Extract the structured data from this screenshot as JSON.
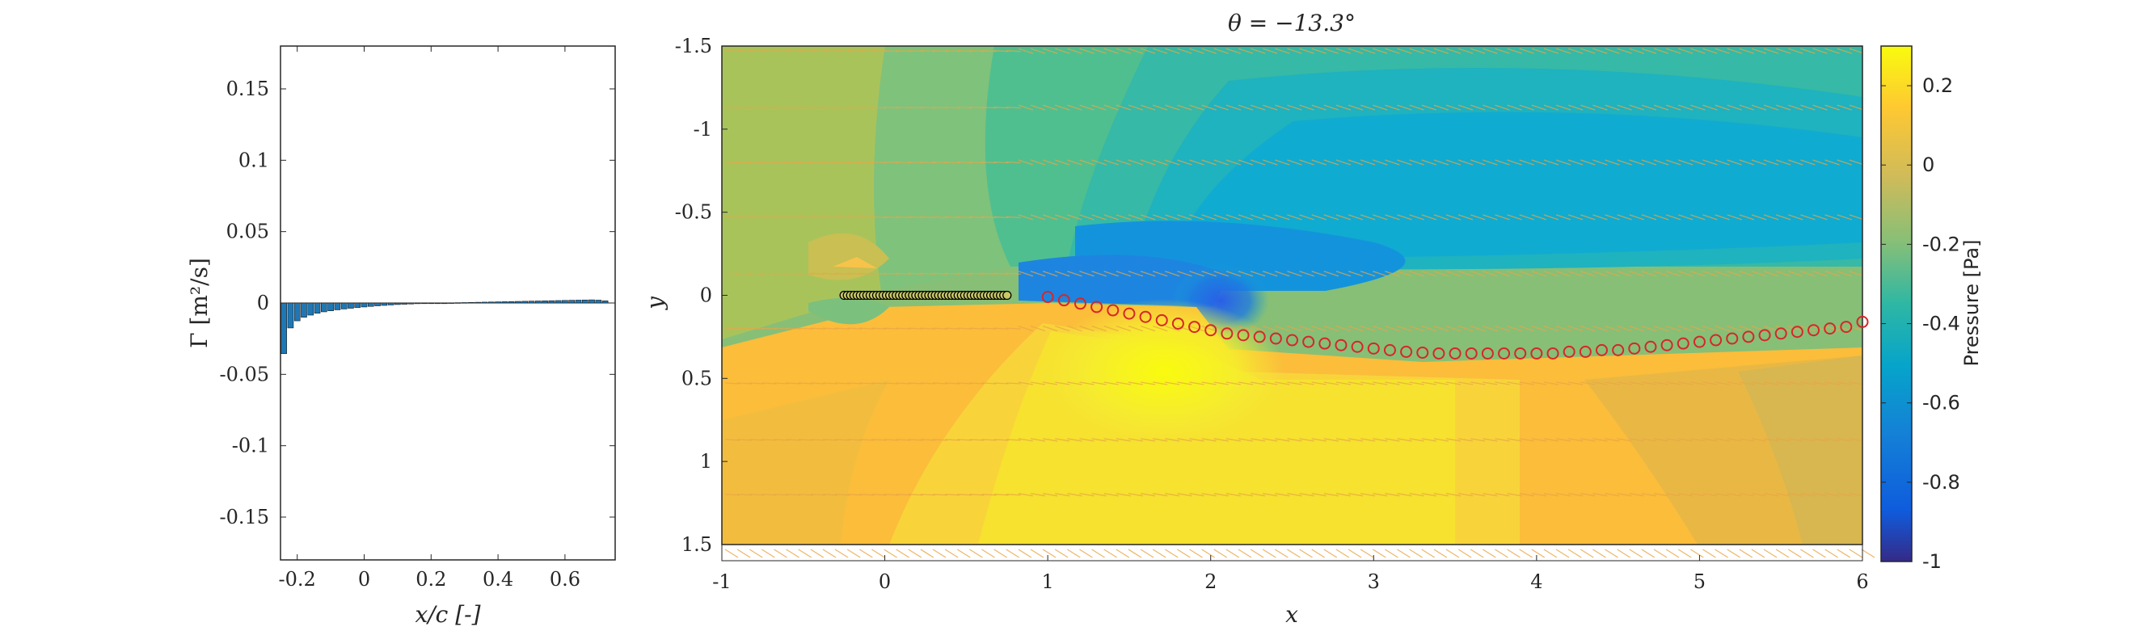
{
  "chart_data": [
    {
      "type": "bar",
      "xlabel": "x/c [-]",
      "ylabel": "Γ [m²/s]",
      "xlim": [
        -0.25,
        0.75
      ],
      "ylim": [
        -0.18,
        0.18
      ],
      "xticks": [
        "-0.2",
        "0",
        "0.2",
        "0.4",
        "0.6"
      ],
      "yticks": [
        "-0.15",
        "-0.1",
        "-0.05",
        "0",
        "0.05",
        "0.1",
        "0.15"
      ],
      "bar_color": "#1f77b4",
      "x": [
        -0.24,
        -0.22,
        -0.2,
        -0.18,
        -0.16,
        -0.14,
        -0.12,
        -0.1,
        -0.08,
        -0.06,
        -0.04,
        -0.02,
        0.0,
        0.02,
        0.04,
        0.06,
        0.08,
        0.1,
        0.12,
        0.14,
        0.16,
        0.18,
        0.2,
        0.22,
        0.24,
        0.26,
        0.28,
        0.3,
        0.32,
        0.34,
        0.36,
        0.38,
        0.4,
        0.42,
        0.44,
        0.46,
        0.48,
        0.5,
        0.52,
        0.54,
        0.56,
        0.58,
        0.6,
        0.62,
        0.64,
        0.66,
        0.68,
        0.7,
        0.72
      ],
      "values": [
        -0.0355,
        -0.0175,
        -0.0125,
        -0.01,
        -0.0085,
        -0.0072,
        -0.0062,
        -0.0055,
        -0.0048,
        -0.0042,
        -0.0037,
        -0.0032,
        -0.0028,
        -0.0024,
        -0.002,
        -0.0017,
        -0.0014,
        -0.0011,
        -0.0009,
        -0.0007,
        -0.0005,
        -0.0003,
        -0.0002,
        -0.0001,
        0.0,
        0.0001,
        0.0002,
        0.0003,
        0.0004,
        0.0005,
        0.0006,
        0.0007,
        0.0008,
        0.0009,
        0.001,
        0.0011,
        0.0012,
        0.0013,
        0.0014,
        0.0015,
        0.0016,
        0.0017,
        0.0018,
        0.0019,
        0.002,
        0.0021,
        0.0022,
        0.002,
        0.0015
      ]
    },
    {
      "type": "heatmap",
      "title": "θ = −13.3°",
      "xlabel": "x",
      "ylabel": "y",
      "xlim": [
        -1,
        6
      ],
      "ylim": [
        -1.5,
        1.5
      ],
      "y_reversed": true,
      "xticks": [
        "-1",
        "0",
        "1",
        "2",
        "3",
        "4",
        "5",
        "6"
      ],
      "yticks": [
        "-1.5",
        "-1",
        "-0.5",
        "0",
        "0.5",
        "1",
        "1.5"
      ],
      "colorbar": {
        "label": "Pressure [Pa]",
        "limits": [
          -1,
          0.3
        ],
        "ticks": [
          "0.2",
          "0",
          "-0.2",
          "-0.4",
          "-0.6",
          "-0.8",
          "-1"
        ],
        "colormap": "parula"
      },
      "plate_points": {
        "x_start": -0.25,
        "x_end": 0.75,
        "y": 0,
        "marker": "circle",
        "edge_color": "#000000",
        "face_color": "#c8c864"
      },
      "wake_points": {
        "marker": "circle",
        "edge_color": "#d62728",
        "x": [
          1.0,
          1.1,
          1.2,
          1.3,
          1.4,
          1.5,
          1.6,
          1.7,
          1.8,
          1.9,
          2.0,
          2.1,
          2.2,
          2.3,
          2.4,
          2.5,
          2.6,
          2.7,
          2.8,
          2.9,
          3.0,
          3.1,
          3.2,
          3.3,
          3.4,
          3.5,
          3.6,
          3.7,
          3.8,
          3.9,
          4.0,
          4.1,
          4.2,
          4.3,
          4.4,
          4.5,
          4.6,
          4.7,
          4.8,
          4.9,
          5.0,
          5.1,
          5.2,
          5.3,
          5.4,
          5.5,
          5.6,
          5.7,
          5.8,
          5.9,
          6.0
        ],
        "y": [
          0.01,
          0.03,
          0.05,
          0.07,
          0.09,
          0.11,
          0.13,
          0.15,
          0.17,
          0.19,
          0.21,
          0.23,
          0.24,
          0.25,
          0.26,
          0.27,
          0.28,
          0.29,
          0.3,
          0.31,
          0.32,
          0.33,
          0.34,
          0.345,
          0.35,
          0.35,
          0.35,
          0.35,
          0.35,
          0.35,
          0.35,
          0.35,
          0.34,
          0.34,
          0.33,
          0.33,
          0.32,
          0.31,
          0.3,
          0.29,
          0.28,
          0.27,
          0.26,
          0.25,
          0.24,
          0.23,
          0.22,
          0.21,
          0.2,
          0.19,
          0.16
        ]
      },
      "quiver": {
        "color": "#e8a545",
        "rows_y": [
          -1.47,
          -1.13,
          -0.8,
          -0.47,
          -0.13,
          0.2,
          0.53,
          0.87,
          1.2,
          1.55
        ]
      }
    }
  ]
}
